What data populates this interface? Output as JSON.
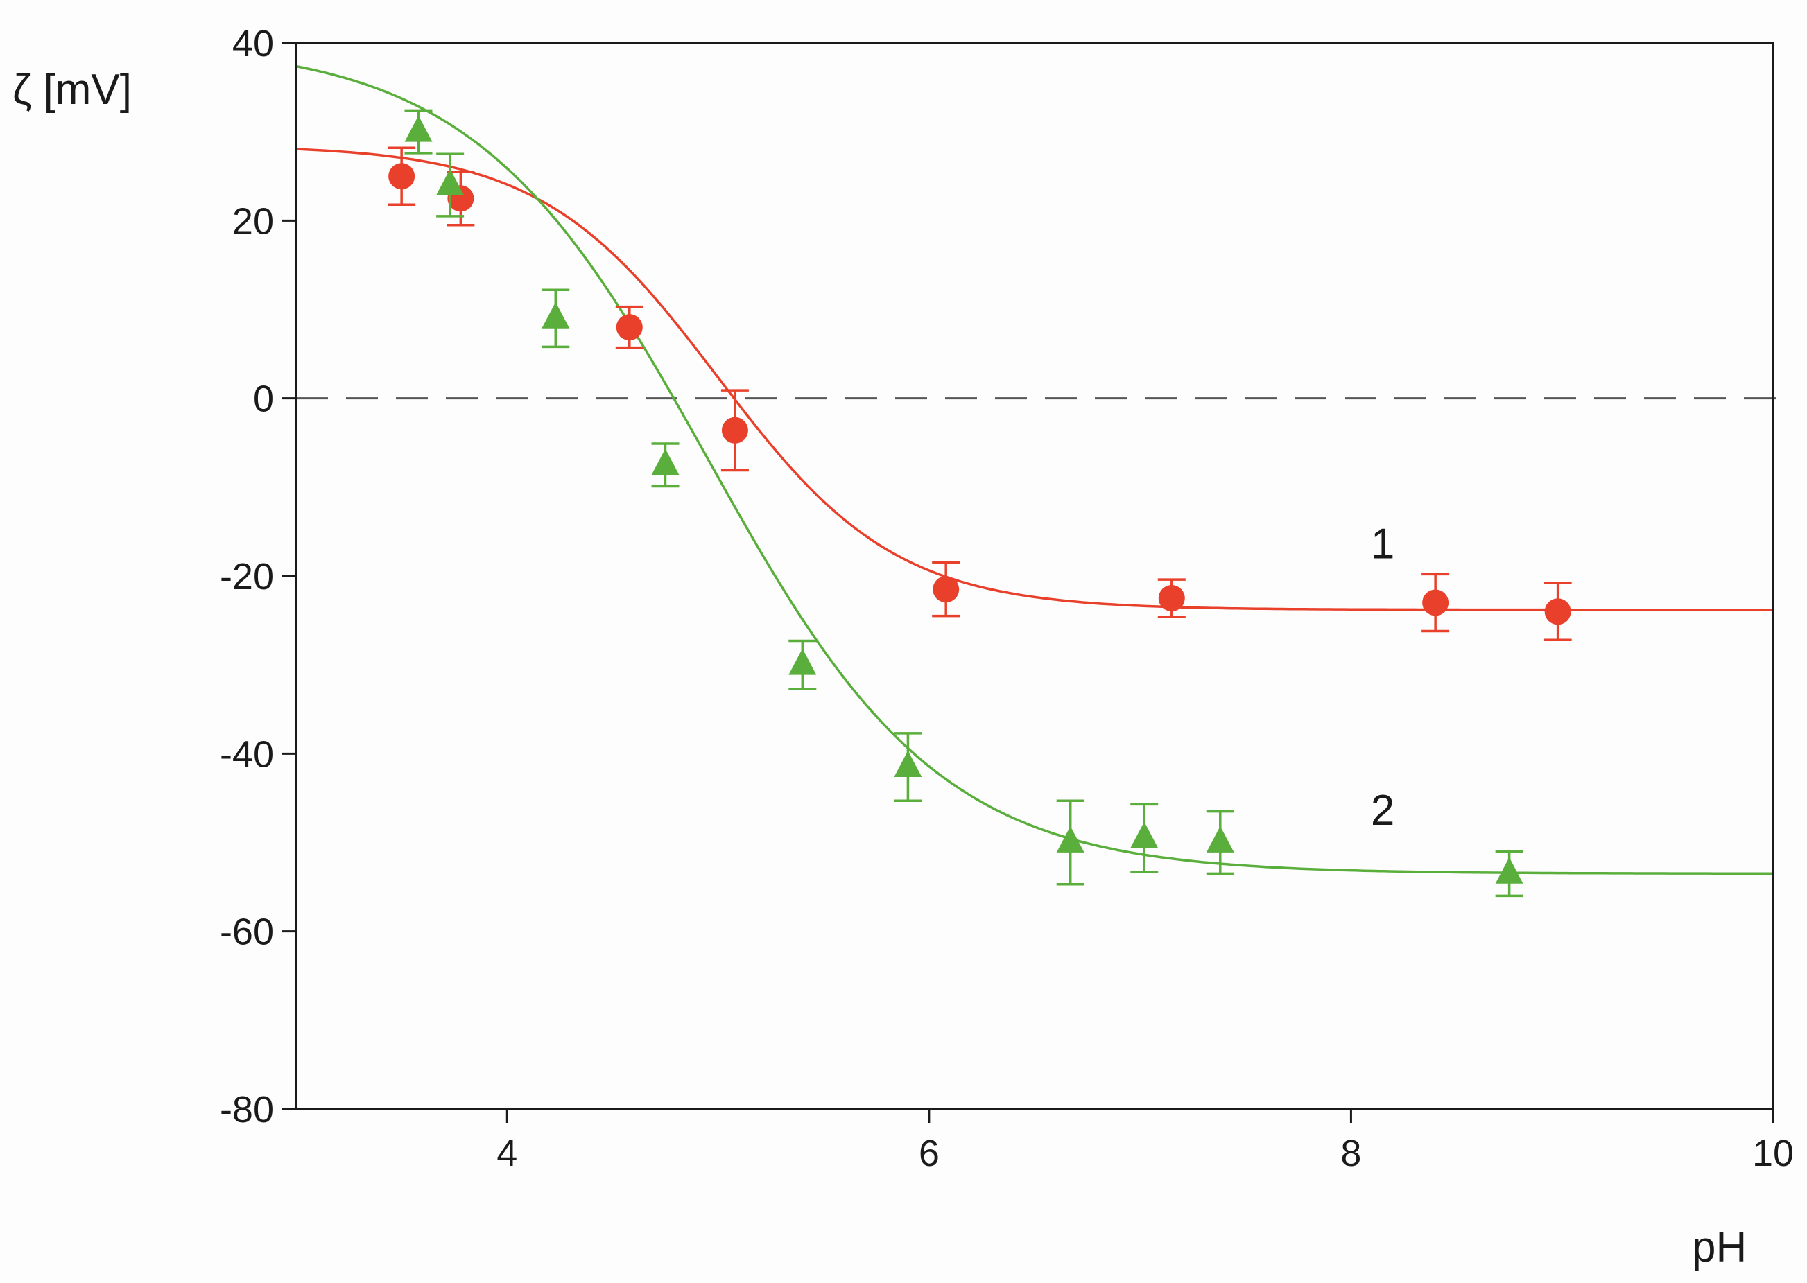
{
  "chart_data": {
    "type": "scatter",
    "title": "",
    "xlabel": "pH",
    "ylabel": "ζ [mV]",
    "xlim": [
      3,
      10
    ],
    "ylim": [
      -80,
      40
    ],
    "xticks": [
      4,
      6,
      8,
      10
    ],
    "yticks": [
      40,
      20,
      0,
      -20,
      -40,
      -60,
      -80
    ],
    "xtick_labels": [
      "4",
      "6",
      "8",
      "10"
    ],
    "ytick_labels": [
      "40",
      "20",
      "0",
      "-20",
      "-40",
      "-60",
      "-80"
    ],
    "grid": false,
    "legend": "none",
    "reference_line": {
      "y": 0,
      "style": "dashed",
      "color": "#555555"
    },
    "series": [
      {
        "name": "1",
        "label": "1",
        "label_pos": [
          8.15,
          -18
        ],
        "marker": "circle",
        "color": "#e8402a",
        "x": [
          3.5,
          3.78,
          4.58,
          5.08,
          6.08,
          7.15,
          8.4,
          8.98
        ],
        "y": [
          25,
          22.5,
          8,
          -3.6,
          -21.5,
          -22.5,
          -23,
          -24
        ],
        "err": [
          3.2,
          3,
          2.3,
          4.5,
          3,
          2.1,
          3.2,
          3.2
        ],
        "fit": {
          "top": 28.5,
          "bottom": -23.8,
          "x0": 5.0,
          "k": 0.42
        }
      },
      {
        "name": "2",
        "label": "2",
        "label_pos": [
          8.15,
          -48
        ],
        "marker": "triangle",
        "color": "#5aae3c",
        "x": [
          3.58,
          3.73,
          4.23,
          4.75,
          5.4,
          5.9,
          6.67,
          7.02,
          7.38,
          8.75
        ],
        "y": [
          30,
          24,
          9,
          -7.5,
          -30,
          -41.5,
          -50,
          -49.5,
          -50,
          -53.5
        ],
        "err": [
          2.4,
          3.5,
          3.2,
          2.4,
          2.7,
          3.8,
          4.7,
          3.8,
          3.5,
          2.5
        ],
        "fit": {
          "top": 40,
          "bottom": -53.5,
          "x0": 4.95,
          "k": 0.55
        }
      }
    ]
  }
}
